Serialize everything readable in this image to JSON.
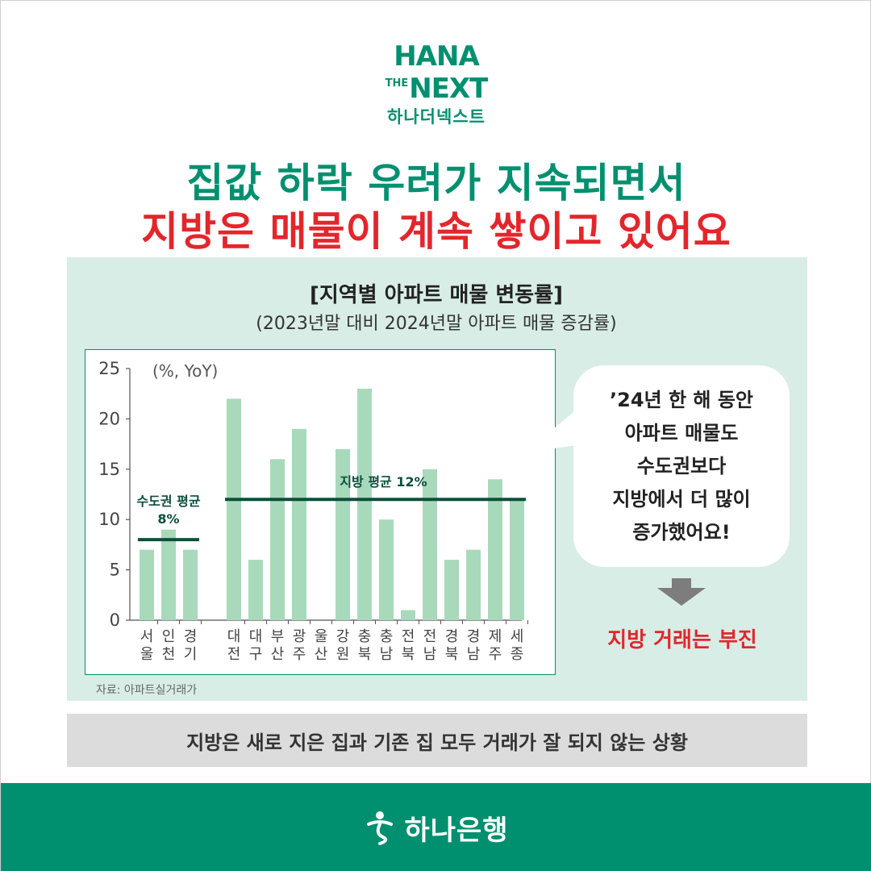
{
  "logo": {
    "line1": "HANA",
    "line2_small": "THE",
    "line2_big": "NEXT",
    "line3": "하나더넥스트"
  },
  "headline": {
    "line1": "집값 하락 우려가 지속되면서",
    "line2": "지방은 매물이 계속 쌓이고 있어요"
  },
  "colors": {
    "brand_green": "#00906f",
    "accent_red": "#e3262c",
    "bar_fill": "#a9d9bb",
    "avg_line": "#0d4f3c",
    "panel_bg": "#d8ede5"
  },
  "chart_data": {
    "type": "bar",
    "title": "[지역별 아파트 매물 변동률]",
    "subtitle": "(2023년말 대비 2024년말 아파트 매물 증감률)",
    "unit_label": "(%, YoY)",
    "ylim": [
      0,
      25
    ],
    "yticks": [
      "0",
      "5",
      "10",
      "15",
      "20",
      "25"
    ],
    "groups": [
      {
        "categories": [
          [
            "서",
            "울"
          ],
          [
            "인",
            "천"
          ],
          [
            "경",
            "기"
          ]
        ],
        "values": [
          7,
          9,
          7
        ]
      },
      {
        "categories": [
          [
            "대",
            "전"
          ],
          [
            "대",
            "구"
          ],
          [
            "부",
            "산"
          ],
          [
            "광",
            "주"
          ],
          [
            "울",
            "산"
          ],
          [
            "강",
            "원"
          ],
          [
            "충",
            "북"
          ],
          [
            "충",
            "남"
          ],
          [
            "전",
            "북"
          ],
          [
            "전",
            "남"
          ],
          [
            "경",
            "북"
          ],
          [
            "경",
            "남"
          ],
          [
            "제",
            "주"
          ],
          [
            "세",
            "종"
          ]
        ],
        "values": [
          22,
          6,
          16,
          19,
          0,
          17,
          23,
          10,
          1,
          15,
          6,
          7,
          14,
          12
        ]
      }
    ],
    "averages": [
      {
        "label_line1": "수도권 평균",
        "label_line2": "8%",
        "value": 8,
        "group": 0
      },
      {
        "label_line1": "지방 평균 12%",
        "value": 12,
        "group": 1
      }
    ],
    "source": "자료: 아파트실거래가"
  },
  "callout": {
    "text": "’24년 한 해 동안\n아파트 매물도\n수도권보다\n지방에서 더 많이\n증가했어요!",
    "arrow_icon": "down-arrow-icon",
    "conclusion": "지방 거래는 부진"
  },
  "bottom_note": "지방은 새로 지은 집과 기존 집 모두 거래가 잘 되지 않는 상황",
  "footer": {
    "icon": "hana-bank-logo-icon",
    "text": "하나은행"
  }
}
